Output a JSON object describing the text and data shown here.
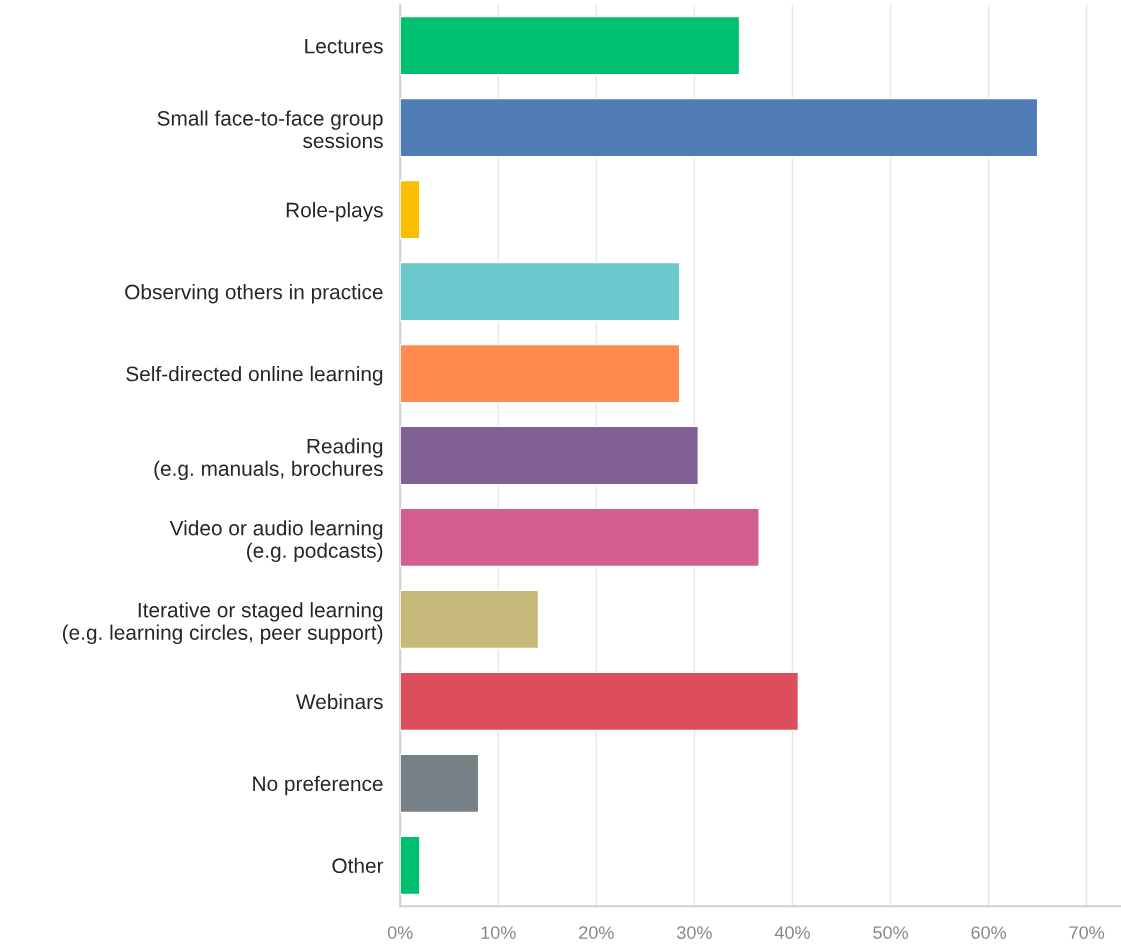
{
  "chart_data": {
    "type": "bar",
    "orientation": "horizontal",
    "categories": [
      "Lectures",
      "Small face-to-face group\nsessions",
      "Role-plays",
      "Observing others in practice",
      "Self-directed online learning",
      "Reading\n(e.g. manuals, brochures",
      "Video or audio learning\n(e.g. podcasts)",
      "Iterative or staged learning\n(e.g. learning circles, peer support)",
      "Webinars",
      "No preference",
      "Other"
    ],
    "values": [
      34.6,
      65.0,
      2.0,
      28.5,
      28.5,
      30.4,
      36.6,
      14.1,
      40.6,
      8.0,
      2.0
    ],
    "colors": [
      "#00bf6f",
      "#507cb6",
      "#f9be00",
      "#6bc8cd",
      "#ff8b4f",
      "#7f6195",
      "#d25f90",
      "#c7b879",
      "#dc4e5c",
      "#768086",
      "#00bf6f"
    ],
    "xlim": [
      0,
      73.5
    ],
    "xticks": [
      {
        "value": 0,
        "label": "0%"
      },
      {
        "value": 10,
        "label": "10%"
      },
      {
        "value": 20,
        "label": "20%"
      },
      {
        "value": 30,
        "label": "30%"
      },
      {
        "value": 40,
        "label": "40%"
      },
      {
        "value": 50,
        "label": "50%"
      },
      {
        "value": 60,
        "label": "60%"
      },
      {
        "value": 70,
        "label": "70%"
      }
    ],
    "grid": "x",
    "legend": false
  }
}
